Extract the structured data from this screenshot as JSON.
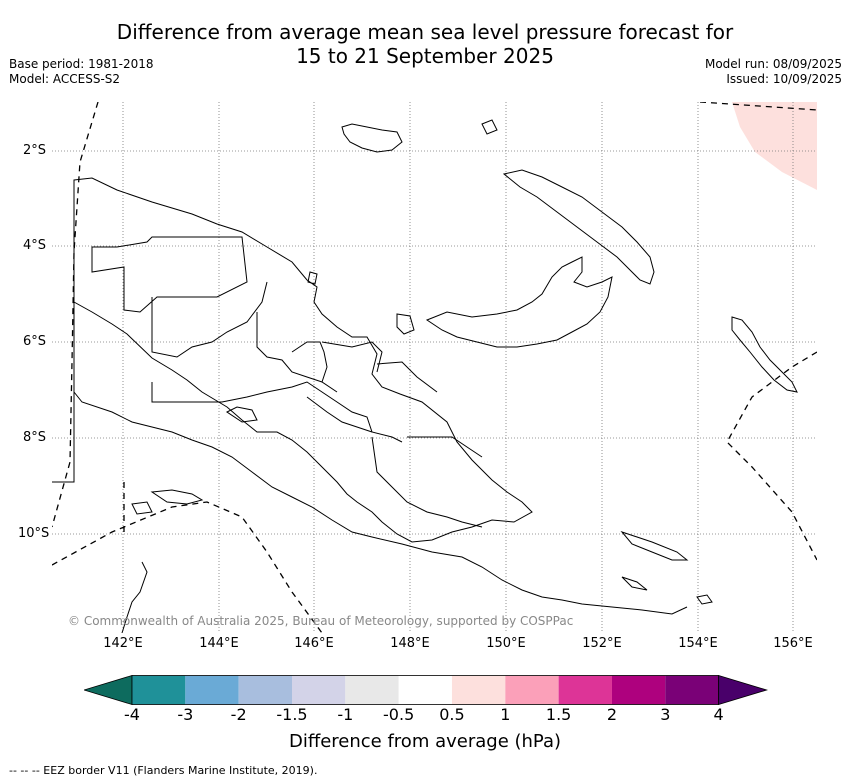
{
  "title": {
    "line1": "Difference from average mean sea level pressure forecast for",
    "line2": "15 to 21 September 2025"
  },
  "meta": {
    "base_period": "Base period: 1981-2018",
    "model": "Model: ACCESS-S2",
    "model_run": "Model run: 08/09/2025",
    "issued": "Issued: 10/09/2025"
  },
  "map": {
    "region": "Papua New Guinea",
    "lat_labels": [
      "2°S",
      "4°S",
      "6°S",
      "8°S",
      "10°S"
    ],
    "lon_labels": [
      "142°E",
      "144°E",
      "146°E",
      "148°E",
      "150°E",
      "152°E",
      "154°E",
      "156°E"
    ],
    "anomaly_fill_color": "#fde0dd",
    "copyright": "© Commonwealth of Australia 2025, Bureau of Meteorology, supported by COSPPac"
  },
  "colorbar": {
    "label": "Difference from average (hPa)",
    "ticks": [
      "-4",
      "-3",
      "-2",
      "-1.5",
      "-1",
      "-0.5",
      "0.5",
      "1",
      "1.5",
      "2",
      "3",
      "4"
    ],
    "colors": [
      "#0d6b5e",
      "#1f9199",
      "#6aaad6",
      "#a8bede",
      "#d3d3e8",
      "#e8e8e8",
      "#ffffff",
      "#fde0dd",
      "#fba0b9",
      "#dd3497",
      "#ae017e",
      "#7a0177",
      "#49006a"
    ]
  },
  "legend_note": "--  --  -- EEZ border V11 (Flanders Marine Institute, 2019)."
}
